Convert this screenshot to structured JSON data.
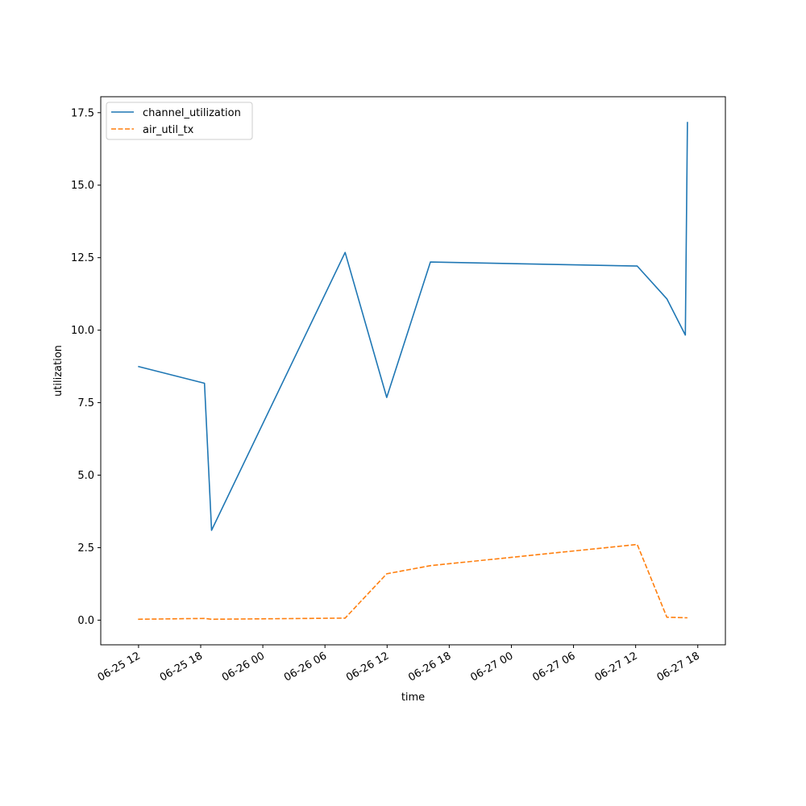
{
  "chart_data": {
    "type": "line",
    "title": "",
    "xlabel": "time",
    "ylabel": "utilization",
    "xlim": [
      "2022-06-25 08:21",
      "2022-06-27 20:40"
    ],
    "ylim": [
      -0.85,
      18.05
    ],
    "x_ticks": [
      "2022-06-25 12:00",
      "2022-06-25 18:00",
      "2022-06-26 00:00",
      "2022-06-26 06:00",
      "2022-06-26 12:00",
      "2022-06-26 18:00",
      "2022-06-27 00:00",
      "2022-06-27 06:00",
      "2022-06-27 12:00",
      "2022-06-27 18:00"
    ],
    "x_tick_labels": [
      "06-25 12",
      "06-25 18",
      "06-26 00",
      "06-26 06",
      "06-26 12",
      "06-26 18",
      "06-27 00",
      "06-27 06",
      "06-27 12",
      "06-27 18"
    ],
    "y_ticks": [
      0.0,
      2.5,
      5.0,
      7.5,
      10.0,
      12.5,
      15.0,
      17.5
    ],
    "y_tick_labels": [
      "0.0",
      "2.5",
      "5.0",
      "7.5",
      "10.0",
      "12.5",
      "15.0",
      "17.5"
    ],
    "grid": false,
    "legend_position": "top-left",
    "series": [
      {
        "name": "channel_utilization",
        "color": "#1f77b4",
        "dash": "solid",
        "points": [
          [
            "2022-06-25 11:57",
            8.75
          ],
          [
            "2022-06-25 18:22",
            8.17
          ],
          [
            "2022-06-25 19:03",
            3.1
          ],
          [
            "2022-06-26 07:57",
            12.68
          ],
          [
            "2022-06-26 11:58",
            7.68
          ],
          [
            "2022-06-26 16:11",
            12.35
          ],
          [
            "2022-06-27 12:09",
            12.21
          ],
          [
            "2022-06-27 15:01",
            11.08
          ],
          [
            "2022-06-27 16:48",
            9.83
          ],
          [
            "2022-06-27 17:00",
            17.18
          ]
        ]
      },
      {
        "name": "air_util_tx",
        "color": "#ff7f0e",
        "dash": "dashed",
        "points": [
          [
            "2022-06-25 11:57",
            0.03
          ],
          [
            "2022-06-25 18:22",
            0.06
          ],
          [
            "2022-06-25 19:03",
            0.03
          ],
          [
            "2022-06-26 07:57",
            0.07
          ],
          [
            "2022-06-26 11:58",
            1.6
          ],
          [
            "2022-06-26 16:11",
            1.88
          ],
          [
            "2022-06-27 12:09",
            2.61
          ],
          [
            "2022-06-27 15:01",
            0.1
          ],
          [
            "2022-06-27 17:00",
            0.08
          ]
        ]
      }
    ]
  }
}
